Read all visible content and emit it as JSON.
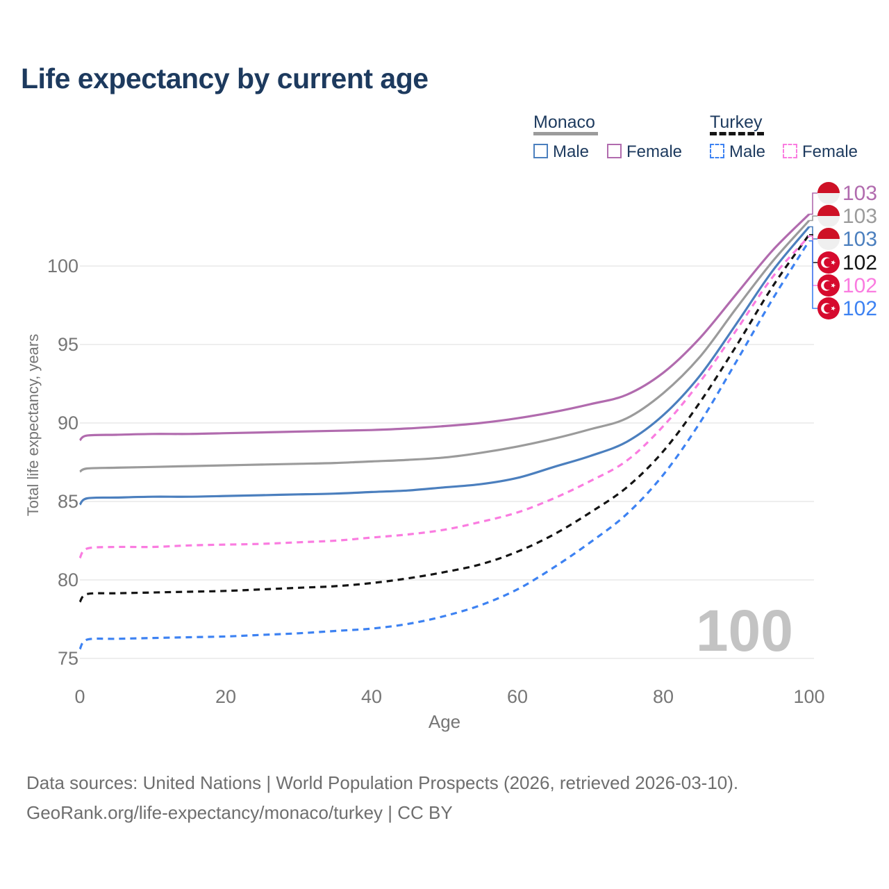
{
  "title": "Life expectancy by current age",
  "legend": {
    "monaco": {
      "label": "Monaco",
      "male": "Male",
      "female": "Female"
    },
    "turkey": {
      "label": "Turkey",
      "male": "Male",
      "female": "Female"
    }
  },
  "watermark": "100",
  "footer": {
    "line1": "Data sources: United Nations | World Population Prospects (2026, retrieved 2026-03-10).",
    "line2": "GeoRank.org/life-expectancy/monaco/turkey | CC BY"
  },
  "colors": {
    "monaco_male": "#4b7fbe",
    "monaco_female": "#b16bae",
    "monaco_combined": "#9b9b9b",
    "turkey_male": "#3d82f2",
    "turkey_female": "#fa7ce0",
    "turkey_combined": "#141414",
    "monaco_flag_red": "#ce1126",
    "turkey_flag_red": "#d60a2e",
    "grid": "#e9e9e9",
    "tick_text": "#767676",
    "navy_text": "#1d3a5e"
  },
  "chart_data": {
    "type": "line",
    "title": "Life expectancy by current age",
    "xlabel": "Age",
    "ylabel": "Total life expectancy, years",
    "x_ticks": [
      0,
      20,
      40,
      60,
      80,
      100
    ],
    "y_ticks": [
      75,
      80,
      85,
      90,
      95,
      100
    ],
    "xlim": [
      0,
      100
    ],
    "ylim": [
      74,
      105
    ],
    "grid": "horizontal-only",
    "legend_position": "top-right",
    "ages": [
      0,
      1,
      5,
      10,
      15,
      20,
      25,
      30,
      35,
      40,
      45,
      50,
      55,
      60,
      65,
      70,
      75,
      80,
      85,
      90,
      95,
      100
    ],
    "series": [
      {
        "name": "Monaco Female",
        "country": "Monaco",
        "sex": "Female",
        "color": "#b16bae",
        "style": "solid",
        "flag": "monaco",
        "end_label": "103",
        "values": [
          88.9,
          89.2,
          89.25,
          89.3,
          89.3,
          89.35,
          89.4,
          89.45,
          89.5,
          89.55,
          89.65,
          89.8,
          90.0,
          90.3,
          90.7,
          91.2,
          91.8,
          93.2,
          95.4,
          98.2,
          101.0,
          103.3
        ]
      },
      {
        "name": "Monaco Combined",
        "country": "Monaco",
        "sex": "Combined",
        "color": "#9b9b9b",
        "style": "solid",
        "flag": "monaco",
        "end_label": "103",
        "values": [
          86.9,
          87.1,
          87.15,
          87.2,
          87.25,
          87.3,
          87.35,
          87.4,
          87.45,
          87.55,
          87.65,
          87.8,
          88.1,
          88.5,
          89.0,
          89.6,
          90.3,
          91.9,
          94.2,
          97.3,
          100.3,
          102.9
        ]
      },
      {
        "name": "Monaco Male",
        "country": "Monaco",
        "sex": "Male",
        "color": "#4b7fbe",
        "style": "solid",
        "flag": "monaco",
        "end_label": "103",
        "values": [
          84.8,
          85.2,
          85.25,
          85.3,
          85.3,
          85.35,
          85.4,
          85.45,
          85.5,
          85.6,
          85.7,
          85.9,
          86.1,
          86.5,
          87.2,
          87.9,
          88.8,
          90.5,
          93.0,
          96.3,
          99.7,
          102.5
        ]
      },
      {
        "name": "Turkey Combined",
        "country": "Turkey",
        "sex": "Combined",
        "color": "#141414",
        "style": "dashed",
        "flag": "turkey",
        "end_label": "102",
        "values": [
          78.6,
          79.1,
          79.15,
          79.2,
          79.25,
          79.3,
          79.4,
          79.5,
          79.6,
          79.8,
          80.1,
          80.5,
          81.0,
          81.8,
          82.9,
          84.3,
          85.9,
          88.2,
          91.3,
          94.9,
          98.7,
          102.0
        ]
      },
      {
        "name": "Turkey Female",
        "country": "Turkey",
        "sex": "Female",
        "color": "#fa7ce0",
        "style": "dashed",
        "flag": "turkey",
        "end_label": "102",
        "values": [
          81.4,
          82.0,
          82.1,
          82.1,
          82.2,
          82.25,
          82.3,
          82.4,
          82.5,
          82.7,
          82.9,
          83.2,
          83.7,
          84.3,
          85.2,
          86.3,
          87.6,
          89.8,
          92.6,
          95.9,
          99.3,
          101.9
        ]
      },
      {
        "name": "Turkey Male",
        "country": "Turkey",
        "sex": "Male",
        "color": "#3d82f2",
        "style": "dashed",
        "flag": "turkey",
        "end_label": "102",
        "values": [
          75.6,
          76.2,
          76.25,
          76.3,
          76.35,
          76.4,
          76.5,
          76.6,
          76.75,
          76.9,
          77.2,
          77.7,
          78.4,
          79.4,
          80.8,
          82.4,
          84.2,
          86.7,
          90.0,
          93.9,
          97.9,
          101.6
        ]
      }
    ]
  }
}
